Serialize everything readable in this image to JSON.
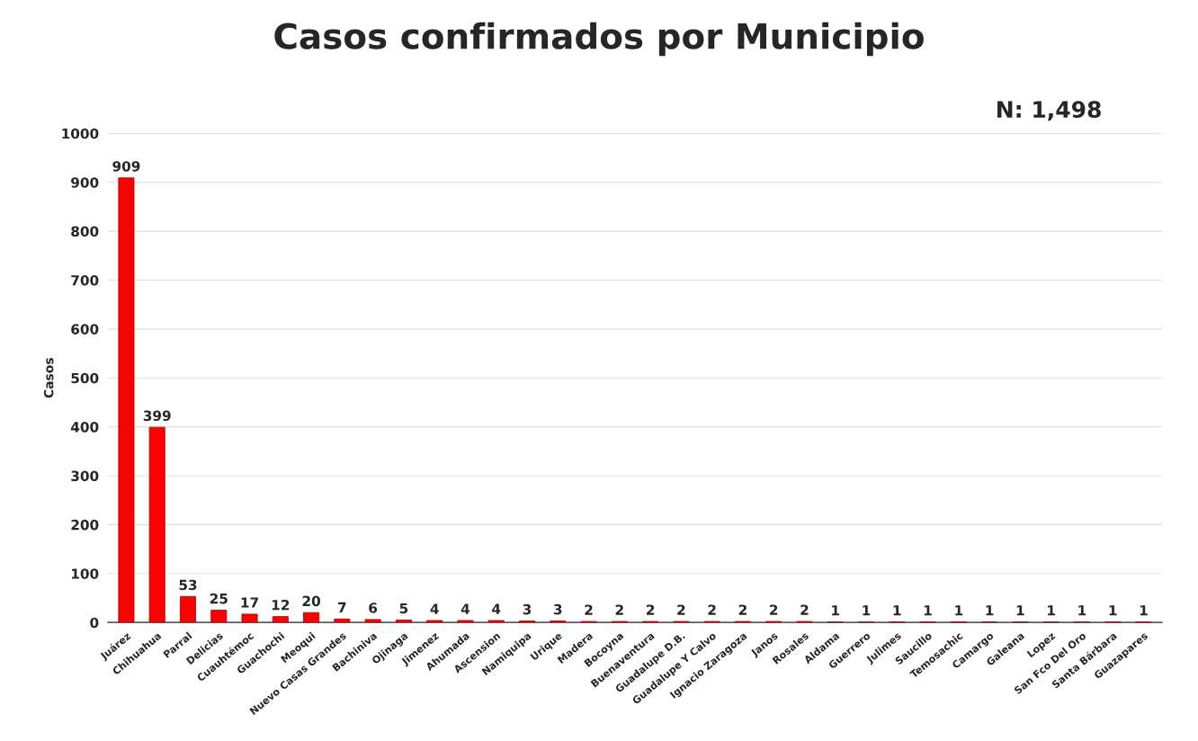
{
  "chart_data": {
    "type": "bar",
    "title": "Casos confirmados por Municipio",
    "ylabel": "Casos",
    "annotations": [
      "N: 1,498"
    ],
    "categories": [
      "Juárez",
      "Chihuahua",
      "Parral",
      "Delicias",
      "Cuauhtémoc",
      "Guachochi",
      "Meoqui",
      "Nuevo Casas Grandes",
      "Bachiniva",
      "Ojinaga",
      "Jimenez",
      "Ahumada",
      "Ascension",
      "Namiquipa",
      "Urique",
      "Madera",
      "Bocoyna",
      "Buenaventura",
      "Guadalupe D.B.",
      "Guadalupe Y Calvo",
      "Ignacio Zaragoza",
      "Janos",
      "Rosales",
      "Aldama",
      "Guerrero",
      "Julimes",
      "Saucillo",
      "Temosachic",
      "Camargo",
      "Galeana",
      "Lopez",
      "San Fco Del Oro",
      "Santa Bárbara",
      "Guazapares"
    ],
    "values": [
      909,
      399,
      53,
      25,
      17,
      12,
      20,
      7,
      6,
      5,
      4,
      4,
      4,
      3,
      3,
      2,
      2,
      2,
      2,
      2,
      2,
      2,
      2,
      1,
      1,
      1,
      1,
      1,
      1,
      1,
      1,
      1,
      1,
      1
    ],
    "color": "#ff0000",
    "ylim": [
      0,
      1000
    ],
    "yticks": [
      0,
      100,
      200,
      300,
      400,
      500,
      600,
      700,
      800,
      900,
      1000
    ],
    "grid": "y",
    "data_labels": true
  }
}
